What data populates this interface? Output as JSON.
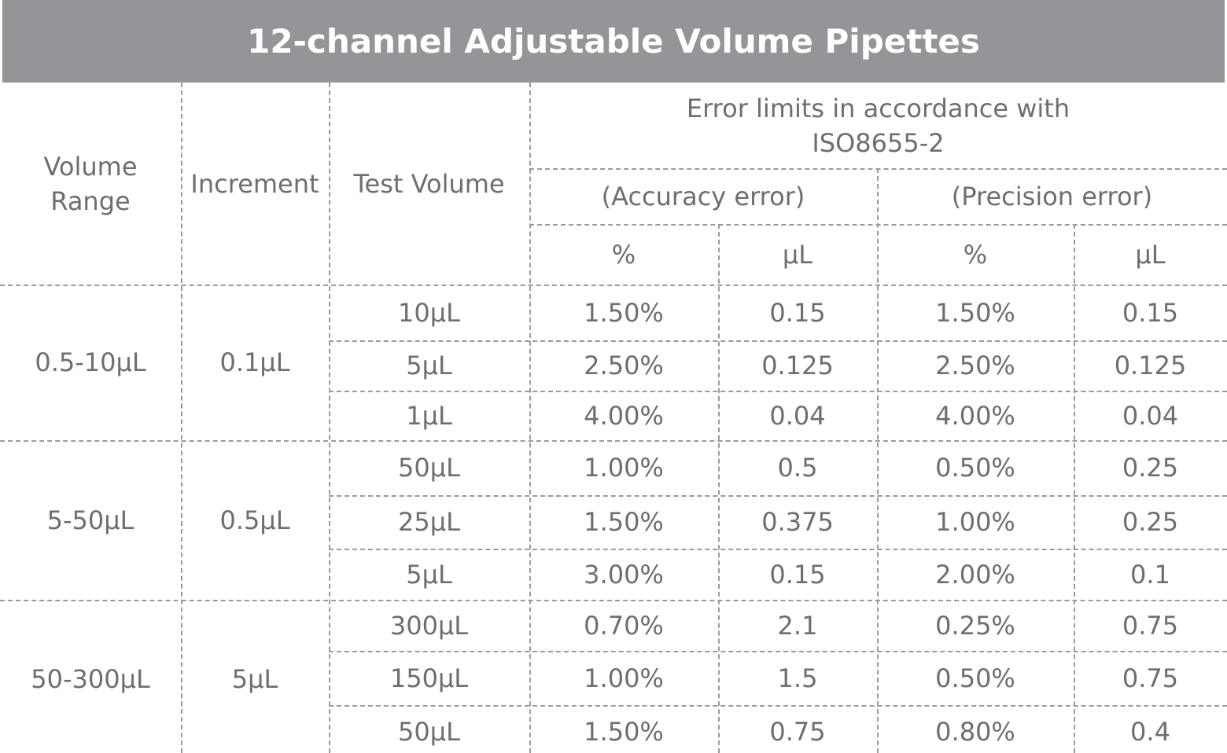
{
  "header": {
    "title": "12-channel Adjustable Volume Pipettes"
  },
  "table": {
    "columns": {
      "volume_range": "Volume Range",
      "increment": "Increment",
      "test_volume": "Test Volume",
      "error_limits": "Error limits in accordance with ISO8655-2",
      "accuracy": "(Accuracy error)",
      "precision": "(Precision error)",
      "units": [
        "%",
        "μL",
        "%",
        "μL"
      ]
    },
    "groups": [
      {
        "range": "0.5-10μL",
        "increment": "0.1μL",
        "rows": [
          [
            "10μL",
            "1.50%",
            "0.15",
            "1.50%",
            "0.15"
          ],
          [
            "5μL",
            "2.50%",
            "0.125",
            "2.50%",
            "0.125"
          ],
          [
            "1μL",
            "4.00%",
            "0.04",
            "4.00%",
            "0.04"
          ]
        ]
      },
      {
        "range": "5-50μL",
        "increment": "0.5μL",
        "rows": [
          [
            "50μL",
            "1.00%",
            "0.5",
            "0.50%",
            "0.25"
          ],
          [
            "25μL",
            "1.50%",
            "0.375",
            "1.00%",
            "0.25"
          ],
          [
            "5μL",
            "3.00%",
            "0.15",
            "2.00%",
            "0.1"
          ]
        ]
      },
      {
        "range": "50-300μL",
        "increment": "5μL",
        "rows": [
          [
            "300μL",
            "0.70%",
            "2.1",
            "0.25%",
            "0.75"
          ],
          [
            "150μL",
            "1.00%",
            "1.5",
            "0.50%",
            "0.75"
          ],
          [
            "50μL",
            "1.50%",
            "0.75",
            "0.80%",
            "0.4"
          ]
        ]
      }
    ]
  }
}
